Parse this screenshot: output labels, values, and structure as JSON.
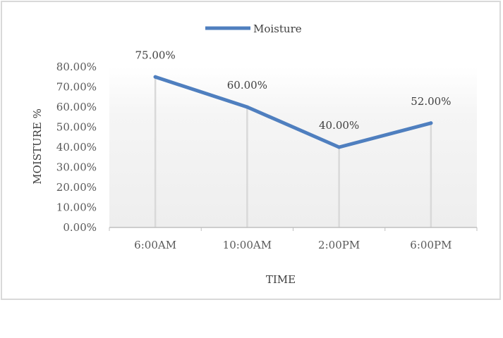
{
  "chart_data": {
    "type": "line",
    "categories": [
      "6:00AM",
      "10:00AM",
      "2:00PM",
      "6:00PM"
    ],
    "series": [
      {
        "name": "Moisture",
        "values": [
          75,
          60,
          40,
          52
        ],
        "color": "#4f7fbf"
      }
    ],
    "data_labels": [
      "75.00%",
      "60.00%",
      "40.00%",
      "52.00%"
    ],
    "xlabel": "TIME",
    "ylabel": "MOISTURE %",
    "ylim": [
      0,
      80
    ],
    "y_ticks": [
      "0.00%",
      "10.00%",
      "20.00%",
      "30.00%",
      "40.00%",
      "50.00%",
      "60.00%",
      "70.00%",
      "80.00%"
    ],
    "legend_position": "top",
    "drop_lines": true,
    "colors": {
      "line": "#4f7fbf",
      "drop_line": "#d9d9d9",
      "axis": "#bfbfbf",
      "frame": "#d9d9d9"
    }
  }
}
